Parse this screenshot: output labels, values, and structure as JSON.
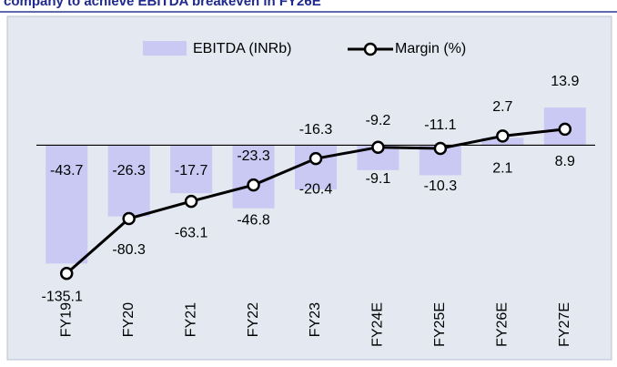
{
  "chart_data": {
    "type": "bar_line",
    "title": "company to achieve EBITDA breakeven in FY26E",
    "categories": [
      "FY19",
      "FY20",
      "FY21",
      "FY22",
      "FY23",
      "FY24E",
      "FY25E",
      "FY26E",
      "FY27E"
    ],
    "series": [
      {
        "name": "EBITDA (INRb)",
        "color": "#c9c9f3",
        "type": "bar",
        "values": [
          -43.7,
          -26.3,
          -17.7,
          -23.3,
          -16.3,
          -9.2,
          -11.1,
          2.7,
          13.9
        ]
      },
      {
        "name": "Margin (%)",
        "color": "#000000",
        "type": "line",
        "axis": "y2",
        "values": [
          -135.1,
          -80.3,
          -63.1,
          -46.8,
          -20.4,
          -9.1,
          -10.3,
          2.1,
          8.9
        ]
      }
    ],
    "ylim": [
      -54,
      20
    ],
    "y2lim": [
      -153,
      47
    ],
    "legend": "top"
  }
}
